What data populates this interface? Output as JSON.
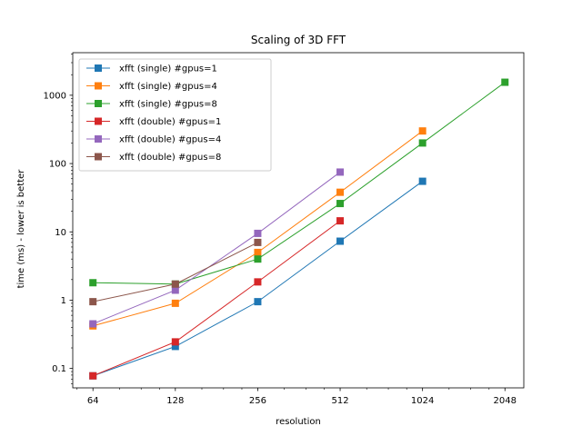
{
  "chart_data": {
    "type": "line",
    "title": "Scaling of 3D FFT",
    "xlabel": "resolution",
    "ylabel": "time (ms) -  lower is better",
    "xscale": "log2",
    "yscale": "log10",
    "xlim": [
      54,
      2400
    ],
    "ylim": [
      0.052,
      4200
    ],
    "x_ticks": [
      64,
      128,
      256,
      512,
      1024,
      2048
    ],
    "x_tick_labels": [
      "64",
      "128",
      "256",
      "512",
      "1024",
      "2048"
    ],
    "y_ticks": [
      0.1,
      1,
      10,
      100,
      1000
    ],
    "y_tick_labels": [
      "0.1",
      "1",
      "10",
      "100",
      "1000"
    ],
    "grid": false,
    "legend_position": "upper-left",
    "marker": "square",
    "series": [
      {
        "name": "xfft (single) #gpus=1",
        "color": "#1f77b4",
        "x": [
          64,
          128,
          256,
          512,
          1024
        ],
        "values": [
          0.078,
          0.21,
          0.95,
          7.3,
          55
        ]
      },
      {
        "name": "xfft (single) #gpus=4",
        "color": "#ff7f0e",
        "x": [
          64,
          128,
          256,
          512,
          1024
        ],
        "values": [
          0.42,
          0.9,
          5.0,
          38,
          300
        ]
      },
      {
        "name": "xfft (single) #gpus=8",
        "color": "#2ca02c",
        "x": [
          64,
          128,
          256,
          512,
          1024,
          2048
        ],
        "values": [
          1.8,
          1.72,
          4.0,
          26,
          200,
          1550
        ]
      },
      {
        "name": "xfft (double) #gpus=1",
        "color": "#d62728",
        "x": [
          64,
          128,
          256,
          512
        ],
        "values": [
          0.078,
          0.245,
          1.85,
          14.5
        ]
      },
      {
        "name": "xfft (double) #gpus=4",
        "color": "#9467bd",
        "x": [
          64,
          128,
          256,
          512
        ],
        "values": [
          0.45,
          1.4,
          9.5,
          75
        ]
      },
      {
        "name": "xfft (double) #gpus=8",
        "color": "#8c564b",
        "x": [
          64,
          128,
          256
        ],
        "values": [
          0.95,
          1.72,
          7.0
        ]
      }
    ]
  }
}
